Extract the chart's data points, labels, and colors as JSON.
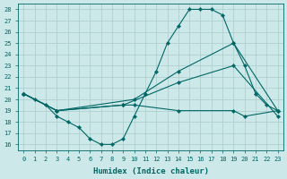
{
  "xlabel": "Humidex (Indice chaleur)",
  "bg_color": "#cce8e8",
  "grid_color": "#aacccc",
  "line_color": "#006666",
  "xlim": [
    -0.5,
    23.5
  ],
  "ylim": [
    15.5,
    28.5
  ],
  "yticks": [
    16,
    17,
    18,
    19,
    20,
    21,
    22,
    23,
    24,
    25,
    26,
    27,
    28
  ],
  "xticks": [
    0,
    1,
    2,
    3,
    4,
    5,
    6,
    7,
    8,
    9,
    10,
    11,
    12,
    13,
    14,
    15,
    16,
    17,
    18,
    19,
    20,
    21,
    22,
    23
  ],
  "series": [
    {
      "x": [
        0,
        1,
        2,
        3,
        4,
        5,
        6,
        7,
        8,
        9,
        10,
        11,
        12,
        13,
        14,
        15,
        16,
        17,
        18,
        19,
        20,
        21,
        22,
        23
      ],
      "y": [
        20.5,
        20.0,
        19.5,
        18.5,
        18.0,
        17.5,
        16.5,
        16.0,
        16.0,
        16.5,
        18.5,
        20.5,
        22.5,
        25.0,
        26.5,
        28.0,
        28.0,
        28.0,
        27.5,
        25.0,
        23.0,
        20.5,
        19.5,
        19.0
      ]
    },
    {
      "x": [
        0,
        3,
        10,
        14,
        19,
        23
      ],
      "y": [
        20.5,
        19.0,
        20.0,
        22.5,
        25.0,
        19.0
      ]
    },
    {
      "x": [
        0,
        3,
        9,
        14,
        19,
        23
      ],
      "y": [
        20.5,
        19.0,
        19.5,
        21.5,
        23.0,
        18.5
      ]
    },
    {
      "x": [
        0,
        3,
        9,
        10,
        14,
        19,
        20,
        23
      ],
      "y": [
        20.5,
        19.0,
        19.5,
        19.5,
        19.0,
        19.0,
        18.5,
        19.0
      ]
    }
  ]
}
